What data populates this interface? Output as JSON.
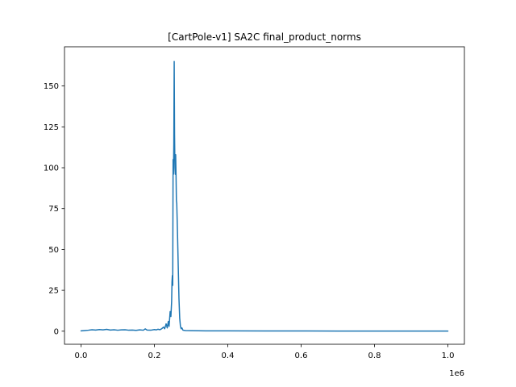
{
  "chart_data": {
    "type": "line",
    "title": "[CartPole-v1] SA2C final_product_norms",
    "xlabel": "",
    "ylabel": "",
    "x_offset_text": "1e6",
    "xlim": [
      -45000,
      1045000
    ],
    "ylim": [
      -8,
      174
    ],
    "grid": false,
    "x_ticks": [
      {
        "value": 0,
        "label": "0.0"
      },
      {
        "value": 200000,
        "label": "0.2"
      },
      {
        "value": 400000,
        "label": "0.4"
      },
      {
        "value": 600000,
        "label": "0.6"
      },
      {
        "value": 800000,
        "label": "0.8"
      },
      {
        "value": 1000000,
        "label": "1.0"
      }
    ],
    "y_ticks": [
      {
        "value": 0,
        "label": "0"
      },
      {
        "value": 25,
        "label": "25"
      },
      {
        "value": 50,
        "label": "50"
      },
      {
        "value": 75,
        "label": "75"
      },
      {
        "value": 100,
        "label": "100"
      },
      {
        "value": 125,
        "label": "125"
      },
      {
        "value": 150,
        "label": "150"
      }
    ],
    "series": [
      {
        "color": "#1f77b4",
        "points": [
          [
            0,
            0.2
          ],
          [
            10000,
            0.4
          ],
          [
            20000,
            0.6
          ],
          [
            30000,
            0.9
          ],
          [
            40000,
            0.7
          ],
          [
            50000,
            1.0
          ],
          [
            60000,
            0.8
          ],
          [
            70000,
            1.1
          ],
          [
            80000,
            0.7
          ],
          [
            90000,
            0.9
          ],
          [
            100000,
            0.6
          ],
          [
            110000,
            0.8
          ],
          [
            120000,
            0.9
          ],
          [
            130000,
            0.6
          ],
          [
            140000,
            0.7
          ],
          [
            150000,
            0.5
          ],
          [
            160000,
            0.8
          ],
          [
            170000,
            0.6
          ],
          [
            175000,
            1.4
          ],
          [
            180000,
            0.7
          ],
          [
            190000,
            0.6
          ],
          [
            200000,
            1.0
          ],
          [
            205000,
            0.8
          ],
          [
            210000,
            1.2
          ],
          [
            215000,
            0.9
          ],
          [
            220000,
            1.5
          ],
          [
            225000,
            2.5
          ],
          [
            228000,
            1.5
          ],
          [
            232000,
            4.5
          ],
          [
            235000,
            2.0
          ],
          [
            238000,
            6.0
          ],
          [
            240000,
            3.0
          ],
          [
            243000,
            12.0
          ],
          [
            245000,
            9.0
          ],
          [
            247000,
            18.0
          ],
          [
            248000,
            30.0
          ],
          [
            249000,
            34.0
          ],
          [
            250000,
            28.0
          ],
          [
            251000,
            105.0
          ],
          [
            252000,
            96.0
          ],
          [
            253000,
            115.0
          ],
          [
            254000,
            165.0
          ],
          [
            255000,
            120.0
          ],
          [
            256000,
            100.0
          ],
          [
            257000,
            96.0
          ],
          [
            258000,
            108.0
          ],
          [
            259000,
            96.0
          ],
          [
            260000,
            80.0
          ],
          [
            261000,
            78.0
          ],
          [
            263000,
            60.0
          ],
          [
            265000,
            40.0
          ],
          [
            267000,
            20.0
          ],
          [
            269000,
            8.0
          ],
          [
            271000,
            3.0
          ],
          [
            273000,
            1.5
          ],
          [
            275000,
            2.0
          ],
          [
            278000,
            0.6
          ],
          [
            285000,
            0.4
          ],
          [
            300000,
            0.3
          ],
          [
            350000,
            0.2
          ],
          [
            400000,
            0.2
          ],
          [
            500000,
            0.15
          ],
          [
            600000,
            0.15
          ],
          [
            700000,
            0.1
          ],
          [
            800000,
            0.1
          ],
          [
            900000,
            0.1
          ],
          [
            1000000,
            0.1
          ]
        ]
      }
    ]
  }
}
